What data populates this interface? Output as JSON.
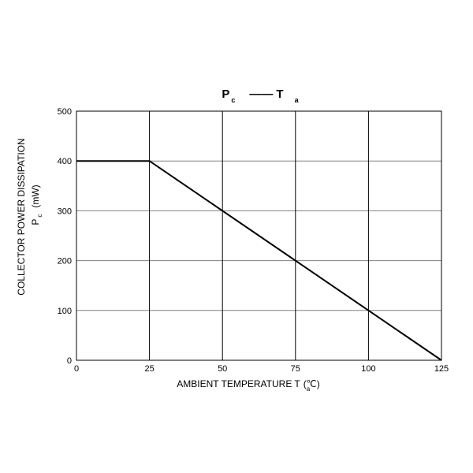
{
  "chart_data": {
    "type": "line",
    "title": [
      "P",
      "c",
      "——",
      "T",
      "a"
    ],
    "y_label": [
      "COLLECTOR POWER DISSIPATION",
      "P",
      "c",
      "(mW)"
    ],
    "x_label": [
      "AMBIENT TEMPERATURE T",
      "(",
      "a",
      "℃)"
    ],
    "x": [
      0,
      25,
      125
    ],
    "series": [
      {
        "color": "#000000",
        "values": [
          400,
          400,
          0
        ]
      }
    ],
    "xlim": [
      0,
      125
    ],
    "xticks": [
      0,
      25,
      50,
      75,
      100,
      125
    ],
    "ylim": [
      0,
      500
    ],
    "yticks": [
      0,
      100,
      200,
      300,
      400,
      500
    ],
    "grid": true
  }
}
